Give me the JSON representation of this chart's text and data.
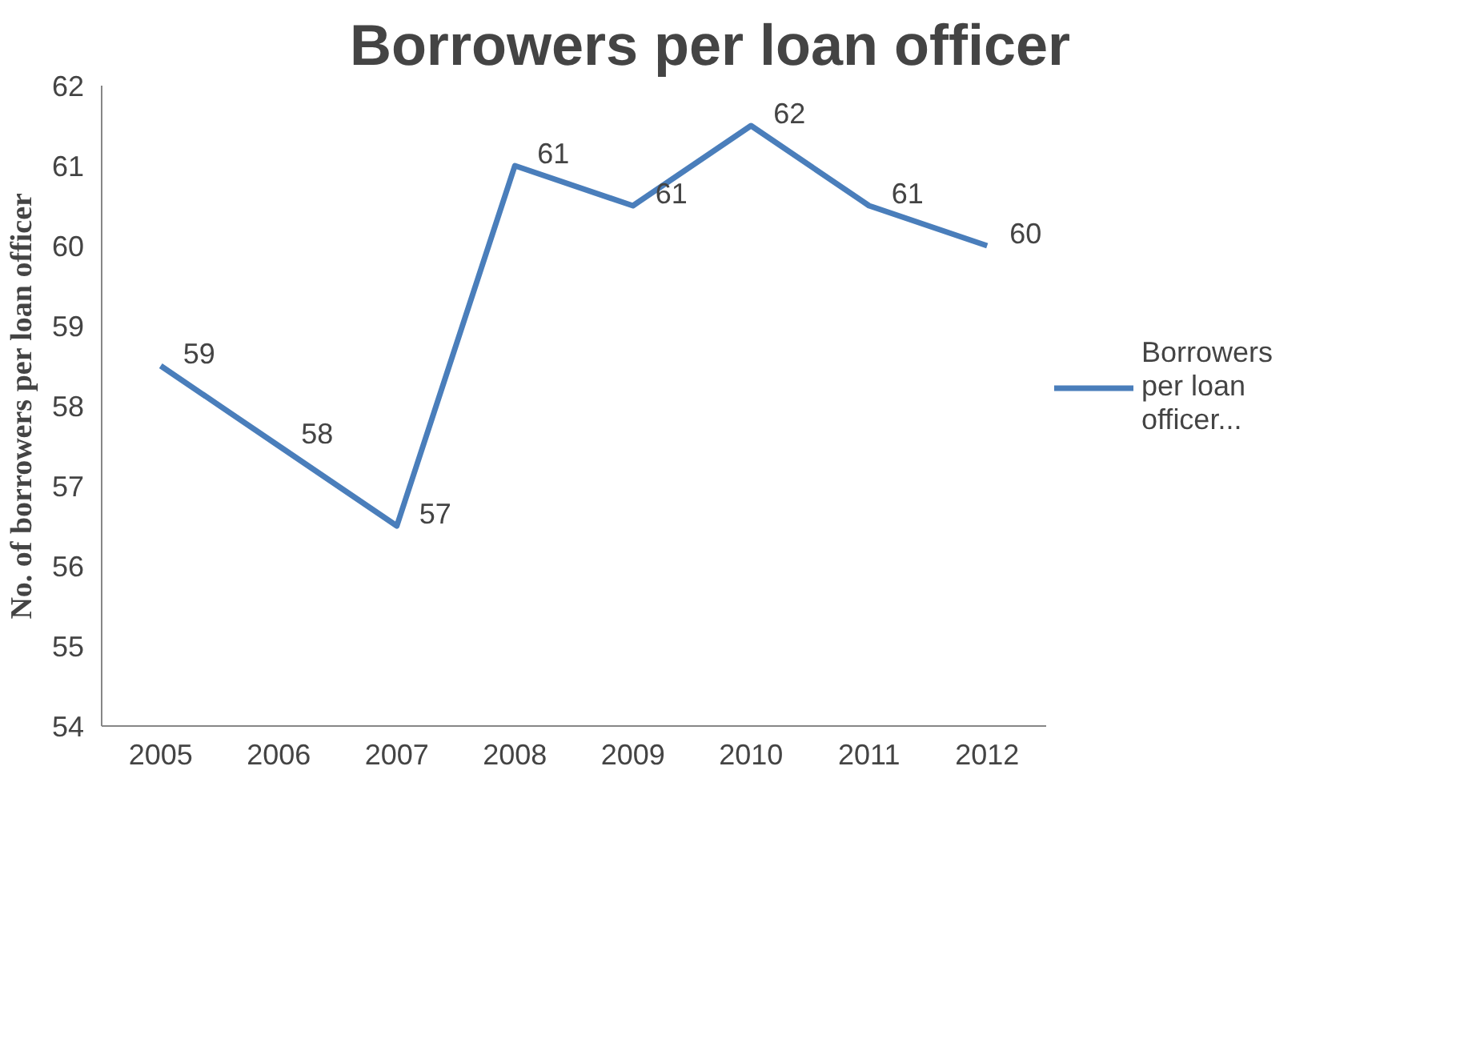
{
  "chart_data": {
    "type": "line",
    "title": "Borrowers per loan officer",
    "ylabel": "No. of borrowers per loan officer",
    "categories": [
      "2005",
      "2006",
      "2007",
      "2008",
      "2009",
      "2010",
      "2011",
      "2012"
    ],
    "series": [
      {
        "name": "Borrowers per loan officer...",
        "color": "#4a7ebb",
        "values": [
          58.5,
          57.5,
          56.5,
          61,
          60.5,
          61.5,
          60.5,
          60
        ],
        "value_labels": [
          "59",
          "58",
          "57",
          "61",
          "61",
          "62",
          "61",
          "60"
        ]
      }
    ],
    "ylim": [
      54,
      62
    ],
    "yticks": [
      54,
      55,
      56,
      57,
      58,
      59,
      60,
      61,
      62
    ],
    "grid": false,
    "legend": "right",
    "marker": "none",
    "line_style": "solid"
  }
}
